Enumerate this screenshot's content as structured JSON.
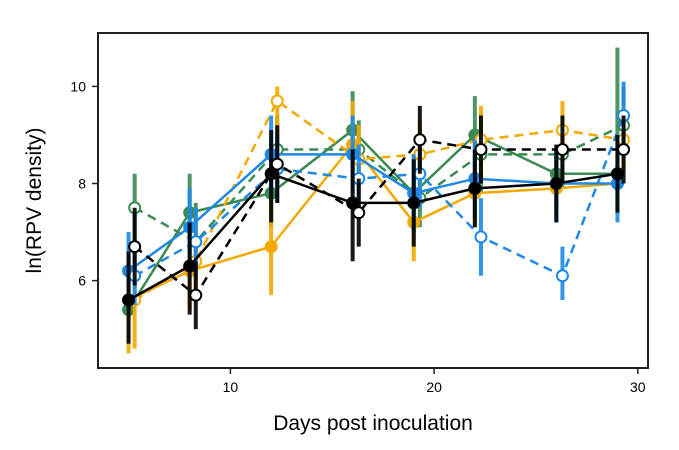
{
  "chart_data": {
    "type": "line",
    "xlabel": "Days post inoculation",
    "ylabel": "ln(RPV density)",
    "xlim": [
      3.5,
      30.5
    ],
    "ylim": [
      4.2,
      11.1
    ],
    "xticks": [
      10,
      20,
      30
    ],
    "yticks": [
      6,
      8,
      10
    ],
    "grid": false,
    "legend": "none",
    "series": [
      {
        "color": "#3a8a52",
        "style": "solid",
        "marker": "filled",
        "x": [
          5,
          8,
          12,
          16,
          19,
          22,
          26,
          29
        ],
        "y": [
          5.4,
          7.4,
          7.8,
          9.1,
          7.8,
          9.0,
          8.2,
          8.2
        ],
        "err_low": [
          4.8,
          6.6,
          7.1,
          8.2,
          7.0,
          8.2,
          7.6,
          7.6
        ],
        "err_high": [
          6.6,
          8.2,
          8.6,
          9.9,
          8.6,
          9.8,
          8.7,
          10.8
        ]
      },
      {
        "color": "#3a8a52",
        "style": "dashed",
        "marker": "open",
        "x": [
          5.3,
          8.3,
          12.3,
          16.3,
          19.3,
          22.3,
          26.3,
          29.3
        ],
        "y": [
          7.5,
          6.8,
          8.7,
          8.7,
          7.7,
          8.6,
          8.6,
          9.2
        ],
        "err_low": [
          6.6,
          6.0,
          8.0,
          8.0,
          7.1,
          7.8,
          7.9,
          8.4
        ],
        "err_high": [
          8.2,
          7.6,
          9.4,
          9.3,
          8.3,
          9.2,
          9.2,
          10.0
        ]
      },
      {
        "color": "#f2a900",
        "style": "solid",
        "marker": "filled",
        "x": [
          5,
          8,
          12,
          16,
          19,
          22,
          26,
          29
        ],
        "y": [
          5.6,
          6.2,
          6.7,
          8.8,
          7.2,
          7.8,
          7.9,
          8.0
        ],
        "err_low": [
          4.5,
          5.4,
          5.7,
          7.9,
          6.4,
          7.1,
          7.3,
          7.4
        ],
        "err_high": [
          6.7,
          7.0,
          7.7,
          9.7,
          8.0,
          8.5,
          8.5,
          8.6
        ]
      },
      {
        "color": "#f2a900",
        "style": "dashed",
        "marker": "open",
        "x": [
          5.3,
          8.3,
          12.3,
          16.3,
          19.3,
          22.3,
          26.3,
          29.3
        ],
        "y": [
          5.6,
          6.4,
          9.7,
          8.5,
          8.6,
          8.9,
          9.1,
          8.9
        ],
        "err_low": [
          4.6,
          5.6,
          8.9,
          7.8,
          7.9,
          8.2,
          8.5,
          8.2
        ],
        "err_high": [
          6.5,
          7.2,
          10.0,
          9.2,
          9.3,
          9.6,
          9.7,
          9.6
        ]
      },
      {
        "color": "#1e88e5",
        "style": "solid",
        "marker": "filled",
        "x": [
          5,
          8,
          12,
          16,
          19,
          22,
          26,
          29
        ],
        "y": [
          6.2,
          7.1,
          8.6,
          8.6,
          7.8,
          8.1,
          8.0,
          8.0
        ],
        "err_low": [
          5.4,
          6.3,
          7.8,
          7.8,
          7.0,
          7.3,
          7.2,
          7.2
        ],
        "err_high": [
          7.0,
          7.9,
          9.4,
          9.4,
          8.6,
          8.9,
          8.8,
          8.8
        ]
      },
      {
        "color": "#1e88e5",
        "style": "dashed",
        "marker": "open",
        "x": [
          5.3,
          8.3,
          12.3,
          16.3,
          19.3,
          22.3,
          26.3,
          29.3
        ],
        "y": [
          6.1,
          6.8,
          8.3,
          8.1,
          8.2,
          6.9,
          6.1,
          9.4
        ],
        "err_low": [
          5.5,
          6.1,
          7.6,
          7.4,
          7.5,
          6.1,
          5.6,
          8.7
        ],
        "err_high": [
          6.8,
          7.5,
          9.0,
          8.8,
          8.9,
          7.7,
          6.7,
          10.1
        ]
      },
      {
        "color": "#000000",
        "style": "solid",
        "marker": "filled",
        "x": [
          5,
          8,
          12,
          16,
          19,
          22,
          26,
          29
        ],
        "y": [
          5.6,
          6.3,
          8.2,
          7.6,
          7.6,
          7.9,
          8.0,
          8.2
        ],
        "err_low": [
          4.7,
          5.3,
          7.2,
          6.4,
          6.7,
          7.1,
          7.2,
          7.4
        ],
        "err_high": [
          6.6,
          7.2,
          9.1,
          8.7,
          8.5,
          8.7,
          8.8,
          9.0
        ]
      },
      {
        "color": "#000000",
        "style": "dashed",
        "marker": "open",
        "x": [
          5.3,
          8.3,
          12.3,
          16.3,
          19.3,
          22.3,
          26.3,
          29.3
        ],
        "y": [
          6.7,
          5.7,
          8.4,
          7.4,
          8.9,
          8.7,
          8.7,
          8.7
        ],
        "err_low": [
          5.9,
          5.0,
          7.6,
          6.7,
          8.2,
          8.0,
          8.0,
          8.0
        ],
        "err_high": [
          7.5,
          6.4,
          9.2,
          8.1,
          9.6,
          9.4,
          9.4,
          9.4
        ]
      }
    ]
  }
}
